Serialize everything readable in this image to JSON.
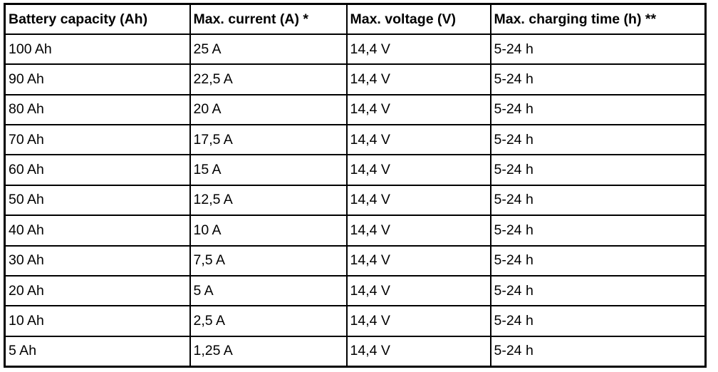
{
  "table": {
    "headers": [
      "Battery capacity (Ah)",
      "Max. current (A) *",
      "Max. voltage (V)",
      "Max. charging time (h) **"
    ],
    "rows": [
      [
        "100 Ah",
        "25 A",
        "14,4 V",
        "5-24 h"
      ],
      [
        "90 Ah",
        "22,5 A",
        "14,4 V",
        "5-24 h"
      ],
      [
        "80 Ah",
        "20 A",
        "14,4 V",
        "5-24 h"
      ],
      [
        "70 Ah",
        "17,5 A",
        "14,4 V",
        "5-24 h"
      ],
      [
        "60 Ah",
        "15 A",
        "14,4 V",
        "5-24 h"
      ],
      [
        "50 Ah",
        "12,5 A",
        "14,4 V",
        "5-24 h"
      ],
      [
        "40 Ah",
        "10 A",
        "14,4 V",
        "5-24 h"
      ],
      [
        "30 Ah",
        "7,5 A",
        "14,4 V",
        "5-24 h"
      ],
      [
        "20 Ah",
        "5 A",
        "14,4 V",
        "5-24 h"
      ],
      [
        "10 Ah",
        "2,5 A",
        "14,4 V",
        "5-24 h"
      ],
      [
        "5 Ah",
        "1,25 A",
        "14,4 V",
        "5-24 h"
      ]
    ]
  }
}
